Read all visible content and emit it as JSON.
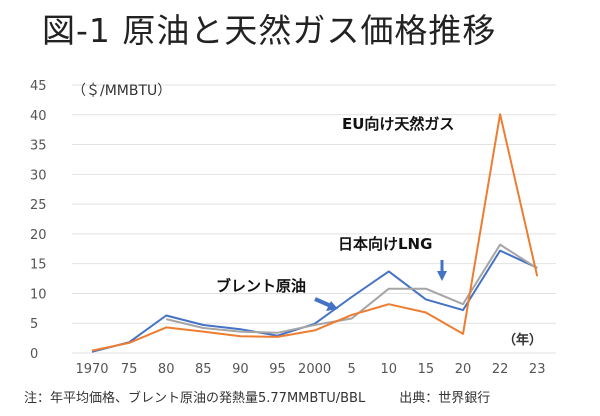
{
  "title": "図-1 原油と天然ガス価格推移",
  "note": "注：年平均価格、ブレント原油の発熱量5.77MMBTU/BBL",
  "source": "出典：世界銀行",
  "chart_data": {
    "type": "line",
    "title": "図-1 原油と天然ガス価格推移",
    "ylabel": "（＄/MMBTU）",
    "xlabel": "（年）",
    "ylim": [
      0,
      45
    ],
    "yticks": [
      "0",
      "5",
      "10",
      "15",
      "20",
      "25",
      "30",
      "35",
      "40",
      "45"
    ],
    "categories": [
      "1970",
      "75",
      "80",
      "85",
      "90",
      "95",
      "2000",
      "5",
      "10",
      "15",
      "20",
      "22",
      "23"
    ],
    "grid": true,
    "series": [
      {
        "name": "ブレント原油",
        "color": "#4472c4",
        "values": [
          0.2,
          1.8,
          6.3,
          4.7,
          4.0,
          2.9,
          4.9,
          9.4,
          13.7,
          9.0,
          7.2,
          17.2,
          14.3
        ]
      },
      {
        "name": "日本向けLNG",
        "color": "#a5a5a5",
        "values": [
          null,
          null,
          5.7,
          4.2,
          3.6,
          3.4,
          4.7,
          5.8,
          10.8,
          10.8,
          8.2,
          18.2,
          14.2
        ]
      },
      {
        "name": "EU向け天然ガス",
        "color": "#ed7d31",
        "values": [
          0.4,
          1.7,
          4.3,
          3.6,
          2.8,
          2.7,
          3.8,
          6.4,
          8.2,
          6.8,
          3.2,
          40.1,
          12.9
        ]
      }
    ]
  }
}
